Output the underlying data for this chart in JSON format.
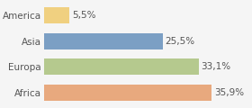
{
  "categories": [
    "America",
    "Asia",
    "Europa",
    "Africa"
  ],
  "values": [
    5.5,
    25.5,
    33.1,
    35.9
  ],
  "labels": [
    "5,5%",
    "25,5%",
    "33,1%",
    "35,9%"
  ],
  "bar_colors": [
    "#f0d080",
    "#7b9fc4",
    "#b5c98e",
    "#e8a97e"
  ],
  "background_color": "#f5f5f5",
  "xlim": [
    0,
    44
  ],
  "bar_height": 0.62,
  "label_fontsize": 7.5,
  "tick_fontsize": 7.5
}
